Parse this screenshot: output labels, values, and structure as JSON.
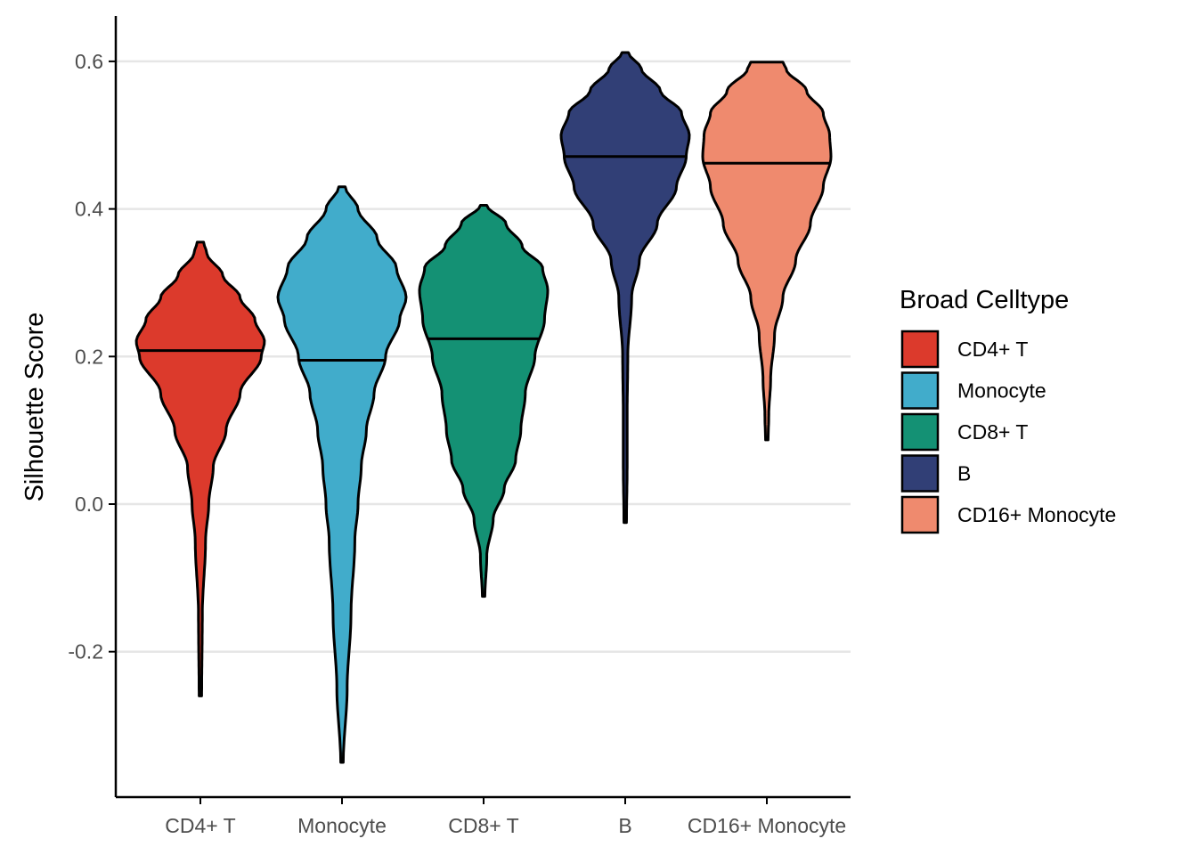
{
  "chart_data": {
    "type": "violin",
    "title": "",
    "xlabel": "",
    "ylabel": "Silhouette Score",
    "ylim": [
      -0.39,
      0.66
    ],
    "yticks": [
      -0.2,
      0.0,
      0.2,
      0.4,
      0.6
    ],
    "ytick_labels": [
      "-0.2",
      "0.0",
      "0.2",
      "0.4",
      "0.6"
    ],
    "grid": "horizontal major",
    "legend_position": "right",
    "legend_title": "Broad Celltype",
    "categories": [
      "CD4+ T",
      "Monocyte",
      "CD8+ T",
      "B",
      "CD16+ Monocyte"
    ],
    "series": [
      {
        "name": "CD4+ T",
        "color": "#DC3A2C",
        "min": -0.26,
        "max": 0.355,
        "median": 0.208,
        "density": [
          [
            -0.26,
            0.02
          ],
          [
            -0.15,
            0.03
          ],
          [
            -0.05,
            0.08
          ],
          [
            0.0,
            0.13
          ],
          [
            0.05,
            0.2
          ],
          [
            0.1,
            0.4
          ],
          [
            0.15,
            0.62
          ],
          [
            0.2,
            0.95
          ],
          [
            0.22,
            1.0
          ],
          [
            0.25,
            0.85
          ],
          [
            0.28,
            0.62
          ],
          [
            0.31,
            0.35
          ],
          [
            0.34,
            0.1
          ],
          [
            0.355,
            0.05
          ]
        ]
      },
      {
        "name": "Monocyte",
        "color": "#41ACCB",
        "min": -0.35,
        "max": 0.43,
        "median": 0.195,
        "density": [
          [
            -0.35,
            0.02
          ],
          [
            -0.25,
            0.08
          ],
          [
            -0.15,
            0.14
          ],
          [
            -0.05,
            0.2
          ],
          [
            0.0,
            0.25
          ],
          [
            0.05,
            0.3
          ],
          [
            0.1,
            0.38
          ],
          [
            0.15,
            0.5
          ],
          [
            0.2,
            0.68
          ],
          [
            0.25,
            0.9
          ],
          [
            0.28,
            1.0
          ],
          [
            0.32,
            0.85
          ],
          [
            0.36,
            0.55
          ],
          [
            0.4,
            0.25
          ],
          [
            0.43,
            0.05
          ]
        ]
      },
      {
        "name": "CD8+ T",
        "color": "#149174",
        "min": -0.125,
        "max": 0.405,
        "median": 0.224,
        "density": [
          [
            -0.125,
            0.02
          ],
          [
            -0.07,
            0.05
          ],
          [
            -0.02,
            0.15
          ],
          [
            0.02,
            0.32
          ],
          [
            0.06,
            0.5
          ],
          [
            0.1,
            0.58
          ],
          [
            0.15,
            0.65
          ],
          [
            0.2,
            0.8
          ],
          [
            0.25,
            0.95
          ],
          [
            0.29,
            1.0
          ],
          [
            0.32,
            0.92
          ],
          [
            0.35,
            0.6
          ],
          [
            0.38,
            0.35
          ],
          [
            0.405,
            0.05
          ]
        ]
      },
      {
        "name": "B",
        "color": "#313F76",
        "min": -0.025,
        "max": 0.612,
        "median": 0.471,
        "density": [
          [
            -0.025,
            0.02
          ],
          [
            0.05,
            0.03
          ],
          [
            0.12,
            0.03
          ],
          [
            0.2,
            0.04
          ],
          [
            0.28,
            0.1
          ],
          [
            0.33,
            0.22
          ],
          [
            0.38,
            0.5
          ],
          [
            0.43,
            0.8
          ],
          [
            0.47,
            0.95
          ],
          [
            0.5,
            1.0
          ],
          [
            0.53,
            0.88
          ],
          [
            0.56,
            0.55
          ],
          [
            0.59,
            0.25
          ],
          [
            0.612,
            0.05
          ]
        ]
      },
      {
        "name": "CD16+ Monocyte",
        "color": "#EF8A6E",
        "min": 0.087,
        "max": 0.599,
        "median": 0.462,
        "density": [
          [
            0.087,
            0.02
          ],
          [
            0.12,
            0.03
          ],
          [
            0.17,
            0.06
          ],
          [
            0.23,
            0.12
          ],
          [
            0.28,
            0.25
          ],
          [
            0.33,
            0.45
          ],
          [
            0.38,
            0.68
          ],
          [
            0.43,
            0.88
          ],
          [
            0.47,
            1.0
          ],
          [
            0.5,
            0.98
          ],
          [
            0.53,
            0.88
          ],
          [
            0.56,
            0.62
          ],
          [
            0.59,
            0.3
          ],
          [
            0.599,
            0.25
          ]
        ]
      }
    ]
  }
}
